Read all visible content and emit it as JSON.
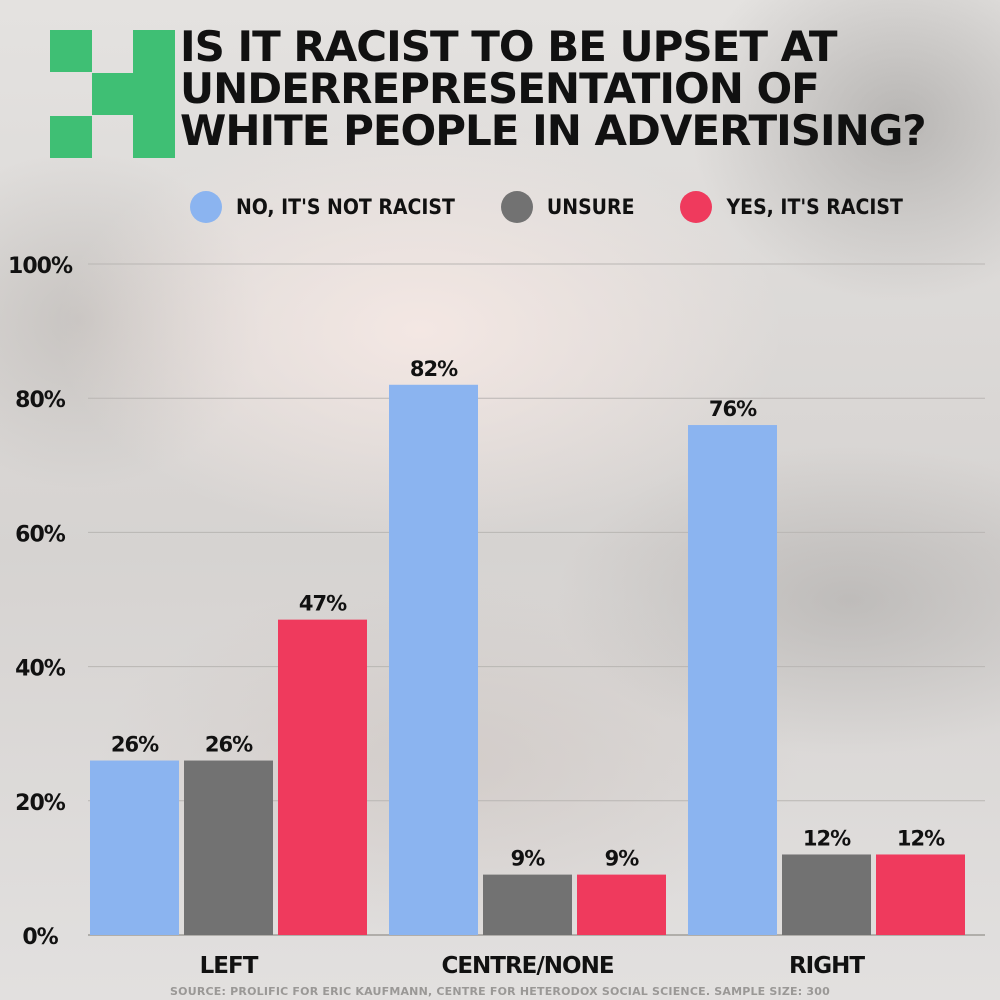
{
  "title_lines": [
    "IS IT RACIST TO BE UPSET AT",
    "UNDERREPRESENTATION OF",
    "WHITE PEOPLE IN ADVERTISING?"
  ],
  "source": "SOURCE: PROLIFIC FOR ERIC KAUFMANN, CENTRE FOR HETERODOX SOCIAL SCIENCE. SAMPLE SIZE: 300",
  "logo_color": "#3fbf74",
  "chart_data": {
    "type": "bar",
    "title": "IS IT RACIST TO BE UPSET AT UNDERREPRESENTATION OF WHITE PEOPLE IN ADVERTISING?",
    "categories": [
      "LEFT",
      "CENTRE/NONE",
      "RIGHT"
    ],
    "series": [
      {
        "name": "NO, IT'S NOT RACIST",
        "color": "#8bb4f0",
        "values": [
          26,
          82,
          76
        ]
      },
      {
        "name": "UNSURE",
        "color": "#727272",
        "values": [
          26,
          9,
          12
        ]
      },
      {
        "name": "YES, IT'S RACIST",
        "color": "#ef3a5d",
        "values": [
          47,
          9,
          12
        ]
      }
    ],
    "ylim": [
      0,
      100
    ],
    "yticks": [
      0,
      20,
      40,
      60,
      80,
      100
    ],
    "ytick_labels": [
      "0%",
      "20%",
      "40%",
      "60%",
      "80%",
      "100%"
    ],
    "value_suffix": "%",
    "legend_position": "top",
    "grid": true
  }
}
